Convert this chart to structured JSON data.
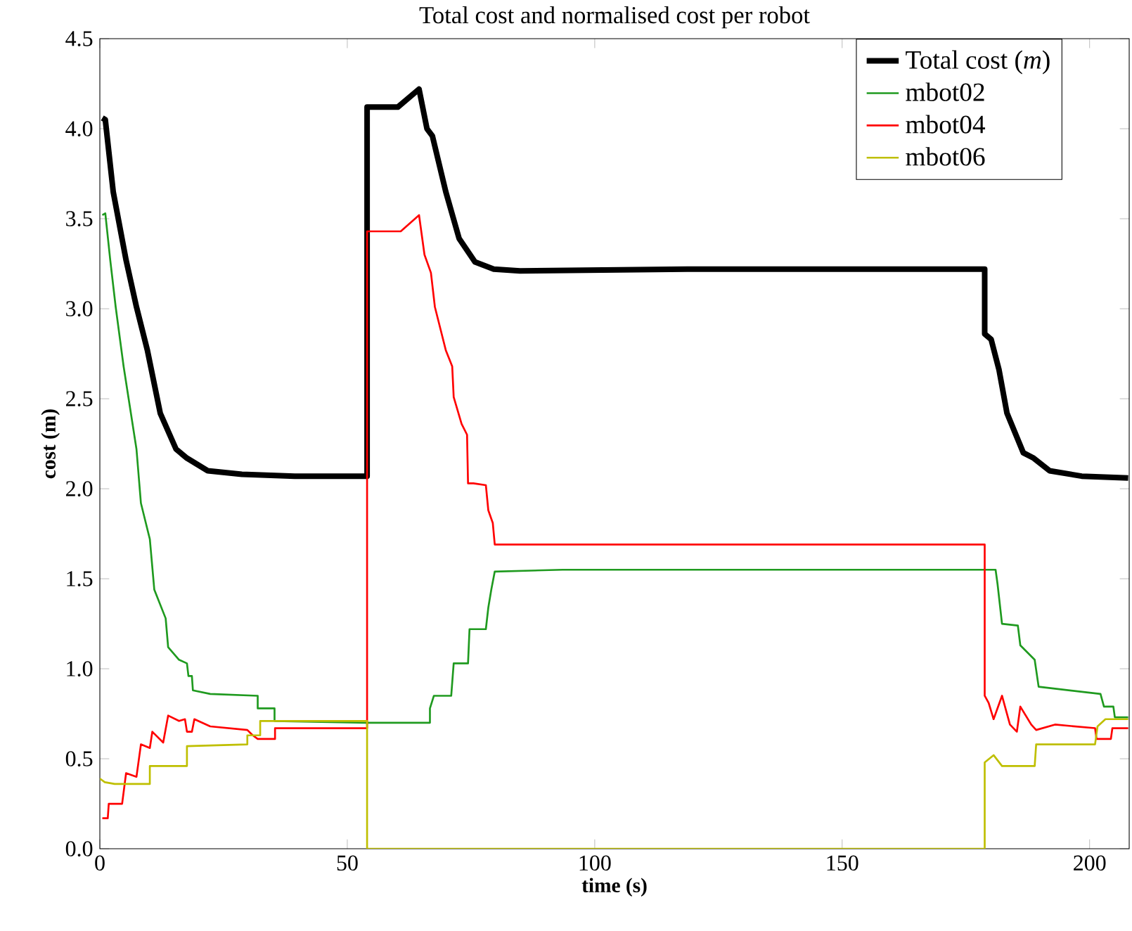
{
  "chart_data": {
    "type": "line",
    "title": "Total cost and normalised cost per robot",
    "xlabel": "time (s)",
    "ylabel": "cost (m)",
    "xlim": [
      0,
      208
    ],
    "ylim": [
      0,
      4.5
    ],
    "xticks": [
      0,
      50,
      100,
      150,
      200
    ],
    "yticks": [
      {
        "value": 0,
        "label": "0.0"
      },
      {
        "value": 0.5,
        "label": "0.5"
      },
      {
        "value": 1,
        "label": "1.0"
      },
      {
        "value": 1.5,
        "label": "1.5"
      },
      {
        "value": 2,
        "label": "2.0"
      },
      {
        "value": 2.5,
        "label": "2.5"
      },
      {
        "value": 3,
        "label": "3.0"
      },
      {
        "value": 3.5,
        "label": "3.5"
      },
      {
        "value": 4,
        "label": "4.0"
      },
      {
        "value": 4.5,
        "label": "4.5"
      }
    ],
    "grid": false,
    "legend": "top right",
    "marker": "none",
    "line_style": "solid",
    "series": [
      {
        "name": "Total cost (*m*)",
        "color": "#000000",
        "x": [
          0.5,
          1.1,
          2.7,
          5.3,
          7.4,
          9.6,
          12.2,
          15.4,
          17.6,
          21.8,
          28.7,
          39.4,
          54.0,
          54.0,
          60.2,
          64.5,
          66.1,
          67.2,
          69.9,
          72.6,
          75.8,
          79.6,
          84.9,
          118.7,
          150,
          178.8,
          178.8,
          180.1,
          181.7,
          183.3,
          186.6,
          188.7,
          191.9,
          198.4,
          207.8
        ],
        "values": [
          4.06,
          4.05,
          3.65,
          3.27,
          3.01,
          2.77,
          2.42,
          2.22,
          2.17,
          2.1,
          2.08,
          2.07,
          2.07,
          4.12,
          4.12,
          4.22,
          4.0,
          3.96,
          3.65,
          3.39,
          3.26,
          3.22,
          3.21,
          3.22,
          3.22,
          3.22,
          2.86,
          2.83,
          2.66,
          2.42,
          2.2,
          2.17,
          2.1,
          2.07,
          2.06
        ]
      },
      {
        "name": "mbot02",
        "color": "#1f9a1f",
        "x": [
          0.5,
          1.1,
          2.1,
          3.2,
          4.8,
          7.4,
          8.3,
          10.1,
          11.0,
          13.3,
          13.8,
          16.0,
          17.6,
          17.9,
          18.6,
          18.8,
          22.3,
          31.9,
          31.9,
          35.3,
          35.3,
          54.0,
          66.7,
          66.7,
          67.5,
          71.0,
          71.5,
          74.4,
          74.7,
          78.0,
          78.5,
          79.1,
          79.8,
          93.5,
          118.7,
          160,
          181.0,
          181.4,
          182.3,
          185.5,
          186.0,
          188.9,
          189.7,
          202.2,
          202.9,
          204.8,
          205.1,
          207.8
        ],
        "values": [
          3.52,
          3.53,
          3.27,
          3.01,
          2.68,
          2.22,
          1.92,
          1.72,
          1.44,
          1.28,
          1.12,
          1.05,
          1.03,
          0.96,
          0.96,
          0.88,
          0.86,
          0.85,
          0.78,
          0.78,
          0.71,
          0.7,
          0.7,
          0.78,
          0.85,
          0.85,
          1.03,
          1.03,
          1.22,
          1.22,
          1.34,
          1.44,
          1.54,
          1.55,
          1.55,
          1.55,
          1.55,
          1.47,
          1.25,
          1.24,
          1.13,
          1.05,
          0.9,
          0.86,
          0.79,
          0.79,
          0.73,
          0.73
        ]
      },
      {
        "name": "mbot04",
        "color": "#ff0000",
        "x": [
          0.5,
          1.6,
          1.8,
          4.5,
          5.3,
          7.4,
          8.3,
          10.1,
          10.6,
          12.8,
          13.8,
          16.0,
          17.2,
          17.6,
          18.6,
          19.1,
          22.3,
          29.8,
          30.9,
          31.9,
          35.4,
          35.4,
          54.0,
          54.0,
          60.8,
          64.5,
          65.6,
          66.9,
          67.7,
          69.9,
          71.2,
          71.5,
          73.1,
          74.2,
          74.4,
          75.5,
          78.0,
          78.5,
          79.4,
          79.8,
          118.7,
          178.8,
          178.8,
          179.6,
          180.6,
          182.3,
          183.9,
          185.3,
          186.0,
          188.2,
          189.2,
          193.0,
          201.1,
          201.4,
          204.3,
          204.6,
          207.8
        ],
        "values": [
          0.17,
          0.17,
          0.25,
          0.25,
          0.42,
          0.4,
          0.58,
          0.56,
          0.65,
          0.59,
          0.74,
          0.71,
          0.72,
          0.65,
          0.65,
          0.72,
          0.68,
          0.66,
          0.63,
          0.61,
          0.61,
          0.67,
          0.67,
          3.43,
          3.43,
          3.52,
          3.3,
          3.2,
          3.01,
          2.77,
          2.68,
          2.51,
          2.36,
          2.3,
          2.03,
          2.03,
          2.02,
          1.88,
          1.81,
          1.69,
          1.69,
          1.69,
          0.85,
          0.81,
          0.72,
          0.85,
          0.69,
          0.65,
          0.79,
          0.69,
          0.66,
          0.69,
          0.67,
          0.61,
          0.61,
          0.67,
          0.67
        ]
      },
      {
        "name": "mbot06",
        "color": "#bfbf00",
        "x": [
          0,
          1,
          3,
          10.1,
          10.1,
          17.6,
          17.6,
          29.8,
          29.8,
          32.4,
          32.4,
          54.0,
          54.0,
          178.8,
          178.8,
          180.6,
          182.3,
          188.9,
          189.2,
          201.1,
          201.6,
          203.2,
          207.8
        ],
        "values": [
          0.39,
          0.37,
          0.36,
          0.36,
          0.46,
          0.46,
          0.57,
          0.58,
          0.63,
          0.63,
          0.71,
          0.71,
          0,
          0,
          0.48,
          0.52,
          0.46,
          0.46,
          0.58,
          0.58,
          0.68,
          0.72,
          0.72
        ]
      }
    ]
  }
}
